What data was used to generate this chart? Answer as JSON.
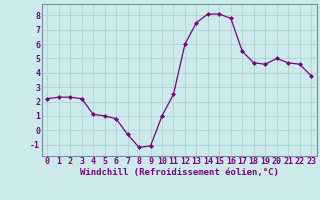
{
  "x": [
    0,
    1,
    2,
    3,
    4,
    5,
    6,
    7,
    8,
    9,
    10,
    11,
    12,
    13,
    14,
    15,
    16,
    17,
    18,
    19,
    20,
    21,
    22,
    23
  ],
  "y": [
    2.2,
    2.3,
    2.3,
    2.2,
    1.1,
    1.0,
    0.8,
    -0.3,
    -1.2,
    -1.1,
    1.0,
    2.5,
    6.0,
    7.5,
    8.1,
    8.1,
    7.8,
    5.5,
    4.7,
    4.6,
    5.0,
    4.7,
    4.6,
    3.8
  ],
  "line_color": "#800080",
  "marker": "D",
  "markersize": 2.0,
  "linewidth": 0.9,
  "background_color": "#cdeaea",
  "grid_color": "#aed4d4",
  "xlabel": "Windchill (Refroidissement éolien,°C)",
  "xlabel_fontsize": 6.5,
  "ylim": [
    -1.8,
    8.8
  ],
  "xlim": [
    -0.5,
    23.5
  ],
  "yticks": [
    -1,
    0,
    1,
    2,
    3,
    4,
    5,
    6,
    7,
    8
  ],
  "xticks": [
    0,
    1,
    2,
    3,
    4,
    5,
    6,
    7,
    8,
    9,
    10,
    11,
    12,
    13,
    14,
    15,
    16,
    17,
    18,
    19,
    20,
    21,
    22,
    23
  ],
  "tick_fontsize": 6.0,
  "spine_color": "#7090a0"
}
